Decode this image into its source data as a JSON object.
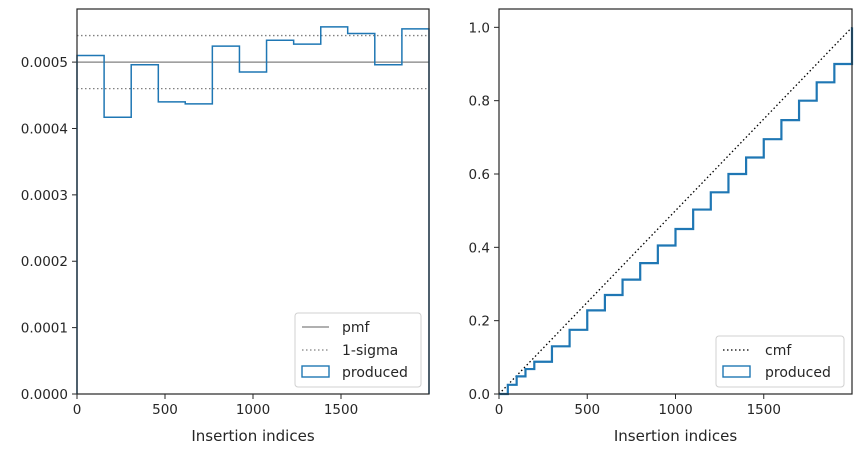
{
  "chart_data": [
    {
      "type": "histogram",
      "title": "",
      "xlabel": "Insertion indices",
      "ylabel": "",
      "xlim": [
        0,
        2000
      ],
      "ylim": [
        0,
        0.00058
      ],
      "xticks": [
        {
          "value": 0,
          "label": "0"
        },
        {
          "value": 500,
          "label": "500"
        },
        {
          "value": 1000,
          "label": "1000"
        },
        {
          "value": 1500,
          "label": "1500"
        }
      ],
      "yticks": [
        {
          "value": 0,
          "label": "0.0000"
        },
        {
          "value": 0.0001,
          "label": "0.0001"
        },
        {
          "value": 0.0002,
          "label": "0.0002"
        },
        {
          "value": 0.0003,
          "label": "0.0003"
        },
        {
          "value": 0.0004,
          "label": "0.0004"
        },
        {
          "value": 0.0005,
          "label": "0.0005"
        }
      ],
      "grid": false,
      "legend_position": "lower-right",
      "pmf": 0.0005,
      "sigma_band": [
        0.00046,
        0.00054
      ],
      "bin_edges": [
        0,
        154,
        308,
        462,
        615,
        769,
        923,
        1077,
        1231,
        1385,
        1538,
        1692,
        1846,
        2000
      ],
      "values": [
        0.00051,
        0.000417,
        0.000496,
        0.00044,
        0.000437,
        0.000524,
        0.000485,
        0.000533,
        0.000527,
        0.000553,
        0.000543,
        0.000496,
        0.00055
      ],
      "series": [
        {
          "name": "pmf",
          "color": "#808080",
          "style": "solid"
        },
        {
          "name": "1-sigma",
          "color": "#808080",
          "style": "dotted"
        },
        {
          "name": "produced",
          "color": "#1f77b4",
          "style": "step"
        }
      ]
    },
    {
      "type": "line",
      "title": "",
      "xlabel": "Insertion indices",
      "ylabel": "",
      "xlim": [
        0,
        2000
      ],
      "ylim": [
        0,
        1.05
      ],
      "xticks": [
        {
          "value": 0,
          "label": "0"
        },
        {
          "value": 500,
          "label": "500"
        },
        {
          "value": 1000,
          "label": "1000"
        },
        {
          "value": 1500,
          "label": "1500"
        }
      ],
      "yticks": [
        {
          "value": 0,
          "label": "0.0"
        },
        {
          "value": 0.2,
          "label": "0.2"
        },
        {
          "value": 0.4,
          "label": "0.4"
        },
        {
          "value": 0.6,
          "label": "0.6"
        },
        {
          "value": 0.8,
          "label": "0.8"
        },
        {
          "value": 1.0,
          "label": "1.0"
        }
      ],
      "grid": false,
      "legend_position": "lower-right",
      "series": [
        {
          "name": "cmf",
          "color": "#000000",
          "style": "dotted",
          "x": [
            0,
            2000
          ],
          "y": [
            0,
            1
          ]
        },
        {
          "name": "produced",
          "color": "#1f77b4",
          "style": "step",
          "x": [
            0,
            50,
            100,
            150,
            200,
            300,
            400,
            500,
            600,
            700,
            800,
            900,
            1000,
            1100,
            1200,
            1300,
            1400,
            1500,
            1600,
            1700,
            1800,
            1900,
            2000
          ],
          "y": [
            0,
            0.025,
            0.048,
            0.068,
            0.088,
            0.13,
            0.175,
            0.228,
            0.27,
            0.312,
            0.357,
            0.405,
            0.45,
            0.503,
            0.55,
            0.6,
            0.645,
            0.695,
            0.747,
            0.8,
            0.85,
            0.9,
            1.0
          ]
        }
      ]
    }
  ]
}
